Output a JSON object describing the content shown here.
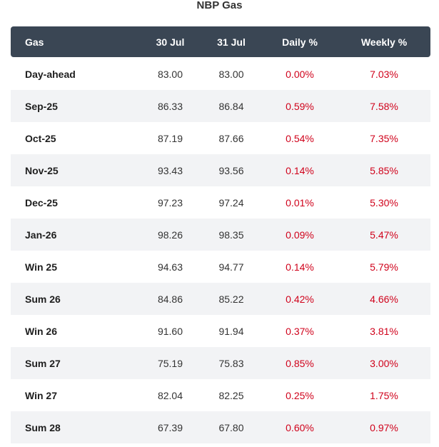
{
  "title": "NBP Gas",
  "colors": {
    "header_bg": "#3a4654",
    "alt_row_bg": "#f2f3f5",
    "change_text": "#d0021b"
  },
  "table": {
    "headers": [
      "Gas",
      "30 Jul",
      "31 Jul",
      "Daily %",
      "Weekly %"
    ],
    "rows": [
      {
        "name": "Day-ahead",
        "d1": "83.00",
        "d2": "83.00",
        "daily": "0.00%",
        "weekly": "7.03%"
      },
      {
        "name": "Sep-25",
        "d1": "86.33",
        "d2": "86.84",
        "daily": "0.59%",
        "weekly": "7.58%"
      },
      {
        "name": "Oct-25",
        "d1": "87.19",
        "d2": "87.66",
        "daily": "0.54%",
        "weekly": "7.35%"
      },
      {
        "name": "Nov-25",
        "d1": "93.43",
        "d2": "93.56",
        "daily": "0.14%",
        "weekly": "5.85%"
      },
      {
        "name": "Dec-25",
        "d1": "97.23",
        "d2": "97.24",
        "daily": "0.01%",
        "weekly": "5.30%"
      },
      {
        "name": "Jan-26",
        "d1": "98.26",
        "d2": "98.35",
        "daily": "0.09%",
        "weekly": "5.47%"
      },
      {
        "name": "Win 25",
        "d1": "94.63",
        "d2": "94.77",
        "daily": "0.14%",
        "weekly": "5.79%"
      },
      {
        "name": "Sum 26",
        "d1": "84.86",
        "d2": "85.22",
        "daily": "0.42%",
        "weekly": "4.66%"
      },
      {
        "name": "Win 26",
        "d1": "91.60",
        "d2": "91.94",
        "daily": "0.37%",
        "weekly": "3.81%"
      },
      {
        "name": "Sum 27",
        "d1": "75.19",
        "d2": "75.83",
        "daily": "0.85%",
        "weekly": "3.00%"
      },
      {
        "name": "Win 27",
        "d1": "82.04",
        "d2": "82.25",
        "daily": "0.25%",
        "weekly": "1.75%"
      },
      {
        "name": "Sum 28",
        "d1": "67.39",
        "d2": "67.80",
        "daily": "0.60%",
        "weekly": "0.97%"
      }
    ]
  }
}
